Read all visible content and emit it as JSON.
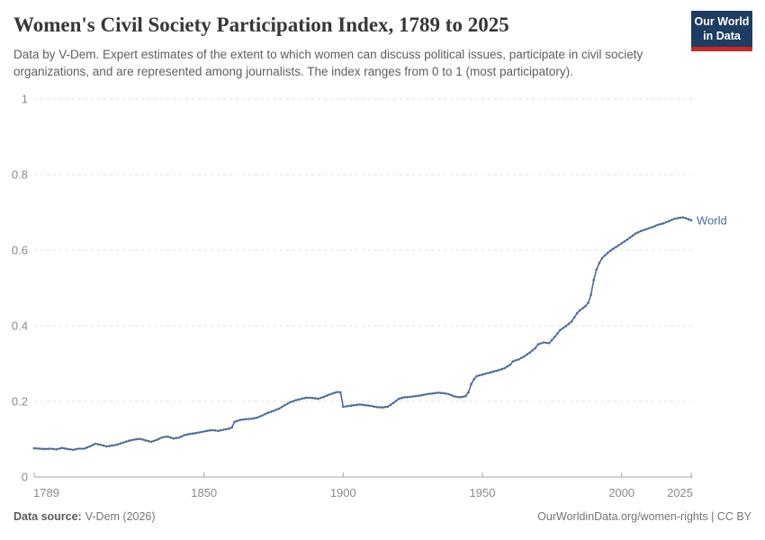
{
  "header": {
    "title": "Women's Civil Society Participation Index, 1789 to 2025",
    "subtitle": "Data by V-Dem. Expert estimates of the extent to which women can discuss political issues, participate in civil society organizations, and are represented among journalists. The index ranges from 0 to 1 (most participatory).",
    "logo": {
      "line1": "Our World",
      "line2": "in Data",
      "bg_color": "#1d3d63",
      "stripe_color": "#cb2824"
    }
  },
  "chart_data": {
    "type": "line",
    "title": "Women's Civil Society Participation Index, 1789 to 2025",
    "xlabel": "",
    "ylabel": "",
    "xlim": [
      1789,
      2025
    ],
    "ylim": [
      0,
      1
    ],
    "grid": "horizontal dashed",
    "legend_position": "end-of-line label",
    "line_color": "#4c6a9c",
    "marker": "dot",
    "axis_label_color": "#8b8b8b",
    "grid_color": "#dcdcdc",
    "axis_color": "#a3a3a3",
    "x_ticks": {
      "values": [
        1789,
        1850,
        1900,
        1950,
        2000,
        2025
      ],
      "labels": [
        "1789",
        "1850",
        "1900",
        "1950",
        "2000",
        "2025"
      ]
    },
    "y_ticks": {
      "values": [
        0,
        0.2,
        0.4,
        0.6,
        0.8,
        1
      ],
      "labels": [
        "0",
        "0.2",
        "0.4",
        "0.6",
        "0.8",
        "1"
      ]
    },
    "series": [
      {
        "name": "World",
        "label_color": "#4c6a9c",
        "points": [
          [
            1789,
            0.076
          ],
          [
            1791,
            0.075
          ],
          [
            1793,
            0.074
          ],
          [
            1795,
            0.075
          ],
          [
            1797,
            0.073
          ],
          [
            1799,
            0.077
          ],
          [
            1801,
            0.074
          ],
          [
            1803,
            0.072
          ],
          [
            1805,
            0.075
          ],
          [
            1807,
            0.075
          ],
          [
            1809,
            0.081
          ],
          [
            1811,
            0.088
          ],
          [
            1813,
            0.085
          ],
          [
            1815,
            0.081
          ],
          [
            1817,
            0.083
          ],
          [
            1819,
            0.086
          ],
          [
            1821,
            0.091
          ],
          [
            1823,
            0.096
          ],
          [
            1825,
            0.099
          ],
          [
            1827,
            0.101
          ],
          [
            1829,
            0.097
          ],
          [
            1831,
            0.093
          ],
          [
            1833,
            0.098
          ],
          [
            1835,
            0.105
          ],
          [
            1837,
            0.107
          ],
          [
            1839,
            0.102
          ],
          [
            1841,
            0.104
          ],
          [
            1843,
            0.111
          ],
          [
            1845,
            0.114
          ],
          [
            1847,
            0.116
          ],
          [
            1849,
            0.119
          ],
          [
            1851,
            0.122
          ],
          [
            1853,
            0.124
          ],
          [
            1855,
            0.122
          ],
          [
            1857,
            0.125
          ],
          [
            1859,
            0.128
          ],
          [
            1860,
            0.131
          ],
          [
            1861,
            0.146
          ],
          [
            1863,
            0.151
          ],
          [
            1865,
            0.153
          ],
          [
            1867,
            0.154
          ],
          [
            1869,
            0.157
          ],
          [
            1871,
            0.163
          ],
          [
            1873,
            0.17
          ],
          [
            1875,
            0.175
          ],
          [
            1877,
            0.181
          ],
          [
            1879,
            0.19
          ],
          [
            1881,
            0.198
          ],
          [
            1883,
            0.203
          ],
          [
            1885,
            0.207
          ],
          [
            1887,
            0.21
          ],
          [
            1889,
            0.209
          ],
          [
            1891,
            0.207
          ],
          [
            1893,
            0.212
          ],
          [
            1895,
            0.218
          ],
          [
            1897,
            0.223
          ],
          [
            1898,
            0.225
          ],
          [
            1899,
            0.224
          ],
          [
            1900,
            0.186
          ],
          [
            1902,
            0.188
          ],
          [
            1904,
            0.19
          ],
          [
            1906,
            0.192
          ],
          [
            1908,
            0.19
          ],
          [
            1910,
            0.188
          ],
          [
            1912,
            0.185
          ],
          [
            1914,
            0.184
          ],
          [
            1916,
            0.186
          ],
          [
            1918,
            0.196
          ],
          [
            1920,
            0.207
          ],
          [
            1922,
            0.211
          ],
          [
            1924,
            0.212
          ],
          [
            1926,
            0.214
          ],
          [
            1928,
            0.216
          ],
          [
            1930,
            0.219
          ],
          [
            1932,
            0.221
          ],
          [
            1934,
            0.223
          ],
          [
            1936,
            0.222
          ],
          [
            1938,
            0.219
          ],
          [
            1940,
            0.213
          ],
          [
            1942,
            0.211
          ],
          [
            1944,
            0.214
          ],
          [
            1945,
            0.224
          ],
          [
            1946,
            0.246
          ],
          [
            1947,
            0.259
          ],
          [
            1948,
            0.267
          ],
          [
            1950,
            0.271
          ],
          [
            1952,
            0.275
          ],
          [
            1954,
            0.279
          ],
          [
            1956,
            0.283
          ],
          [
            1958,
            0.288
          ],
          [
            1960,
            0.297
          ],
          [
            1961,
            0.306
          ],
          [
            1963,
            0.311
          ],
          [
            1965,
            0.319
          ],
          [
            1967,
            0.329
          ],
          [
            1969,
            0.341
          ],
          [
            1970,
            0.351
          ],
          [
            1972,
            0.356
          ],
          [
            1974,
            0.354
          ],
          [
            1976,
            0.371
          ],
          [
            1978,
            0.389
          ],
          [
            1980,
            0.399
          ],
          [
            1982,
            0.411
          ],
          [
            1984,
            0.433
          ],
          [
            1985,
            0.441
          ],
          [
            1987,
            0.452
          ],
          [
            1988,
            0.461
          ],
          [
            1989,
            0.482
          ],
          [
            1990,
            0.521
          ],
          [
            1991,
            0.549
          ],
          [
            1992,
            0.566
          ],
          [
            1993,
            0.579
          ],
          [
            1995,
            0.593
          ],
          [
            1997,
            0.604
          ],
          [
            1999,
            0.613
          ],
          [
            2001,
            0.623
          ],
          [
            2003,
            0.633
          ],
          [
            2005,
            0.644
          ],
          [
            2007,
            0.651
          ],
          [
            2009,
            0.656
          ],
          [
            2011,
            0.661
          ],
          [
            2013,
            0.667
          ],
          [
            2015,
            0.671
          ],
          [
            2017,
            0.677
          ],
          [
            2019,
            0.683
          ],
          [
            2021,
            0.686
          ],
          [
            2022,
            0.687
          ],
          [
            2023,
            0.685
          ],
          [
            2024,
            0.682
          ],
          [
            2025,
            0.679
          ]
        ]
      }
    ]
  },
  "footer": {
    "source_label": "Data source:",
    "source_value": "V-Dem (2026)",
    "credit": "OurWorldinData.org/women-rights | CC BY"
  }
}
